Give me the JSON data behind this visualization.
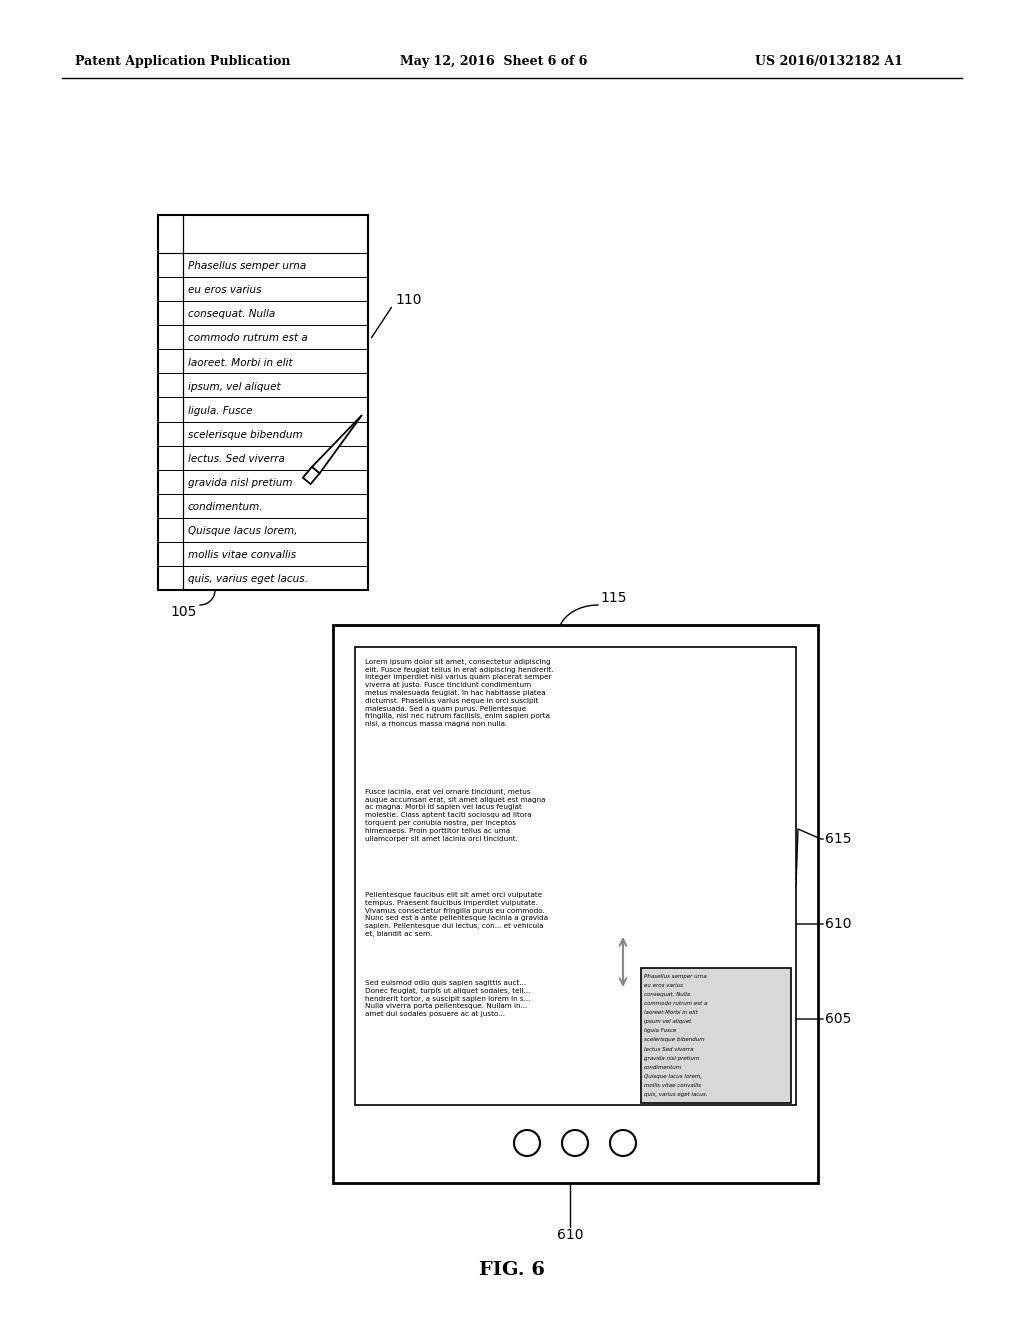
{
  "header_left": "Patent Application Publication",
  "header_center": "May 12, 2016  Sheet 6 of 6",
  "header_right": "US 2016/0132182 A1",
  "fig_label": "FIG. 6",
  "background_color": "#ffffff",
  "label_110": "110",
  "label_115": "115",
  "label_105": "105",
  "label_615": "615",
  "label_610": "610",
  "label_610b": "610",
  "label_605": "605",
  "handwritten_lines": [
    "Phasellus semper urna",
    "eu eros varius",
    "consequat. Nulla",
    "commodo rutrum est a",
    "laoreet. Morbi in elit",
    "ipsum, vel aliquet",
    "ligula. Fusce",
    "scelerisque bibendum",
    "lectus. Sed viverra",
    "gravida nisl pretium",
    "condimentum.",
    "Quisque lacus lorem,",
    "mollis vitae convallis",
    "quis, varius eget lacus."
  ],
  "tablet_para1": "Lorem ipsum dolor sit amet, consectetur adipiscing\nelit. Fusce feugiat tellus in erat adipiscing hendrerit.\nInteger imperdiet nisl varius quam placerat semper\nviverra at justo. Fusce tincidunt condimentum\nmetus malesuada feugiat. In hac habitasse platea\ndictumst. Phasellus varius neque in orci suscipit\nmalesuada. Sed a quam purus. Pellentesque\nfringilla, nisl nec rutrum facilisis, enim sapien porta\nnisl, a rhoncus massa magna non nulla.",
  "tablet_para2": "Fusce lacinia, erat vel ornare tincidunt, metus\nauque accumsan erat, sit amet aliquet est magna\nac magna. Morbi id sapien vel lacus feugiat\nmolestie. Class aptent taciti sociosqu ad litora\ntorquent per conubia nostra, per inceptos\nhimenaeos. Proin porttitor tellus ac uma\nullamcorper sit amet lacinia orci tincidunt.",
  "tablet_para3": "Pellentesque faucibus elit sit amet orci vulputate\ntempus. Praesent faucibus imperdiet vulputate.\nVivamus consectetur fringilla purus eu commodo.\nNunc sed est a ante pellentesque lacinia a gravida\nsapien. Pellentesque dui lectus, con... et vehicula\net, blandit ac sem.",
  "tablet_para4": "Sed euismod odio quis sapien sagittis auct...\nDonec feugiat, turpis ut aliquet sodales, tell...\nhendrerit tortor, a suscipit sapien lorem in s...\nNulla viverra porta pellentesque. Nullam in...\namet dui sodales posuere ac at justo...",
  "hw_overlay_lines": [
    "Phasellus semper urna",
    "eu eros varius",
    "consequat. Nulla",
    "commodo rutrum est a",
    "laoreet Morbi in elit",
    "ipsum vel aliquet",
    "ligula Fusce",
    "scelerisque bibendum",
    "lectus Sed viverra",
    "gravida nisl pretium",
    "condimentum",
    "Quisque lacus lorem,",
    "mollis vitae convallis",
    "quis, varius eget lacus."
  ]
}
